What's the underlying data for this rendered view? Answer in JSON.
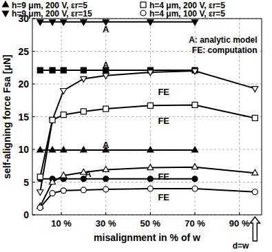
{
  "chart_data": {
    "type": "line",
    "xlabel": "misalignment in % of w",
    "ylabel": "self-aligning force Fsa [μN]",
    "xlim": [
      -3,
      100
    ],
    "ylim": [
      0,
      30
    ],
    "xticks": [
      {
        "value": 10,
        "label": "10 %"
      },
      {
        "value": 30,
        "label": "30 %"
      },
      {
        "value": 50,
        "label": "50 %"
      },
      {
        "value": 70,
        "label": "70 %"
      },
      {
        "value": 90,
        "label": "90 %"
      }
    ],
    "yticks": [
      0,
      5,
      10,
      15,
      20,
      25,
      30
    ],
    "grid": true,
    "legend": "top",
    "series": [
      {
        "name": "h=9 μm, 200 V, εr=5",
        "color": "#000000",
        "marker": "filled-triangle-up",
        "line_style": "solid",
        "x": [
          0.5,
          6,
          11,
          20,
          30,
          50,
          70
        ],
        "values": [
          9.9,
          9.9,
          9.9,
          9.9,
          9.9,
          9.9,
          9.9
        ]
      },
      {
        "name": "h=9 μm, 200 V, εr=15",
        "color": "#000000",
        "marker": "filled-triangle-down",
        "line_style": "solid",
        "x": [
          0.5,
          6,
          11,
          20,
          30,
          50,
          70
        ],
        "values": [
          29.5,
          29.5,
          29.5,
          29.5,
          29.5,
          29.5,
          29.5
        ]
      },
      {
        "color": "#000000",
        "marker": "filled-square",
        "line_style": "solid",
        "x": [
          0.5,
          6,
          11,
          20,
          30,
          50,
          70
        ],
        "values": [
          22.1,
          22.1,
          22.1,
          22.1,
          22.1,
          22.1,
          22.1
        ]
      },
      {
        "color": "#000000",
        "marker": "filled-circle",
        "line_style": "solid",
        "x": [
          0.5,
          6,
          11,
          20,
          30,
          50,
          70
        ],
        "values": [
          5.5,
          5.5,
          5.5,
          5.5,
          5.5,
          5.5,
          5.5
        ]
      },
      {
        "color": "#000000",
        "marker": "triangle-up",
        "line_style": "solid",
        "x": [
          0.5,
          6,
          11,
          20,
          30,
          50,
          70,
          97
        ],
        "values": [
          1.3,
          5,
          6,
          6.5,
          6.9,
          7.2,
          7.3,
          6.4
        ]
      },
      {
        "color": "#000000",
        "marker": "triangle-down",
        "line_style": "solid",
        "x": [
          0.5,
          6,
          11,
          20,
          30,
          50,
          70,
          97
        ],
        "values": [
          3.5,
          14.5,
          19,
          20.8,
          21.3,
          21.8,
          22,
          19.3
        ]
      },
      {
        "name": "h=4 μm, 200 V, εr=5",
        "color": "#000000",
        "marker": "square",
        "line_style": "solid",
        "x": [
          0.5,
          6,
          11,
          20,
          30,
          50,
          70,
          97
        ],
        "values": [
          5.8,
          14.5,
          15.3,
          15.8,
          16.2,
          16.7,
          16.8,
          14.8
        ]
      },
      {
        "name": "h=4 μm, 100 V, εr=5",
        "color": "#000000",
        "marker": "circle",
        "line_style": "solid",
        "x": [
          0.5,
          6,
          11,
          20,
          30,
          50,
          70,
          97
        ],
        "values": [
          1.1,
          3.3,
          3.7,
          3.8,
          3.9,
          4,
          4,
          3.5
        ]
      }
    ],
    "annotations": [
      {
        "text": "A: analytic model",
        "x": 98,
        "y": 26.8
      },
      {
        "text": "FE: computation",
        "x": 98,
        "y": 25.3
      },
      {
        "text": "A",
        "x": 30,
        "y": 28.4
      },
      {
        "text": "A",
        "x": 30,
        "y": 22.9
      },
      {
        "text": "A",
        "x": 30,
        "y": 10.7
      },
      {
        "text": "A",
        "x": 22,
        "y": 6.3
      },
      {
        "text": "FE",
        "x": 56,
        "y": 18.8
      },
      {
        "text": "FE",
        "x": 56,
        "y": 14.4
      },
      {
        "text": "FE",
        "x": 56,
        "y": 5.9
      },
      {
        "text": "FE",
        "x": 56,
        "y": 2.7
      },
      {
        "text": "d=w",
        "x": 97,
        "y": -4.6
      }
    ]
  }
}
